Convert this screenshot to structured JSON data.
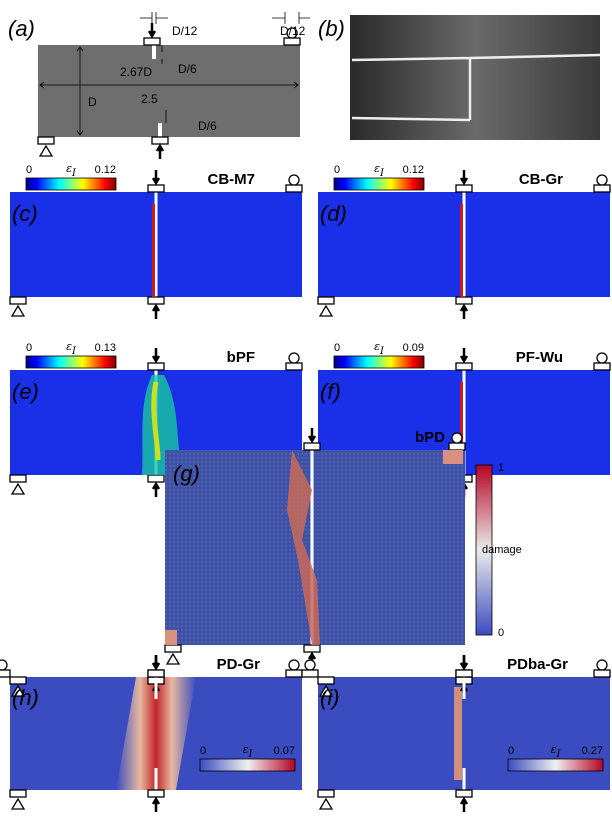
{
  "panels": [
    {
      "label": "(a)",
      "annotations": [
        "D/12",
        "D/12",
        "D/6",
        "2.67D",
        "D",
        "2.5",
        "D/6"
      ]
    },
    {
      "label": "(b)"
    },
    {
      "label": "(c)",
      "title": "CB-M7",
      "colorbar": {
        "min": 0,
        "symbol": "ε",
        "subscript": "I",
        "max": 0.12
      }
    },
    {
      "label": "(d)",
      "title": "CB-Gr",
      "colorbar": {
        "min": 0,
        "symbol": "ε",
        "subscript": "I",
        "max": 0.12
      }
    },
    {
      "label": "(e)",
      "title": "bPF",
      "colorbar": {
        "min": 0,
        "symbol": "ε",
        "subscript": "I",
        "max": 0.13
      }
    },
    {
      "label": "(f)",
      "title": "PF-Wu",
      "colorbar": {
        "min": 0,
        "symbol": "ε",
        "subscript": "I",
        "max": 0.09
      }
    },
    {
      "label": "(g)",
      "title": "bPD",
      "colorbar": {
        "min": 0,
        "name": "damage",
        "max": 1
      }
    },
    {
      "label": "(h)",
      "title": "PD-Gr",
      "colorbar": {
        "min": 0,
        "symbol": "ε",
        "subscript": "I",
        "max": 0.07
      }
    },
    {
      "label": "(i)",
      "title": "PDba-Gr",
      "colorbar": {
        "min": 0,
        "symbol": "ε",
        "subscript": "I",
        "max": 0.27
      }
    }
  ]
}
